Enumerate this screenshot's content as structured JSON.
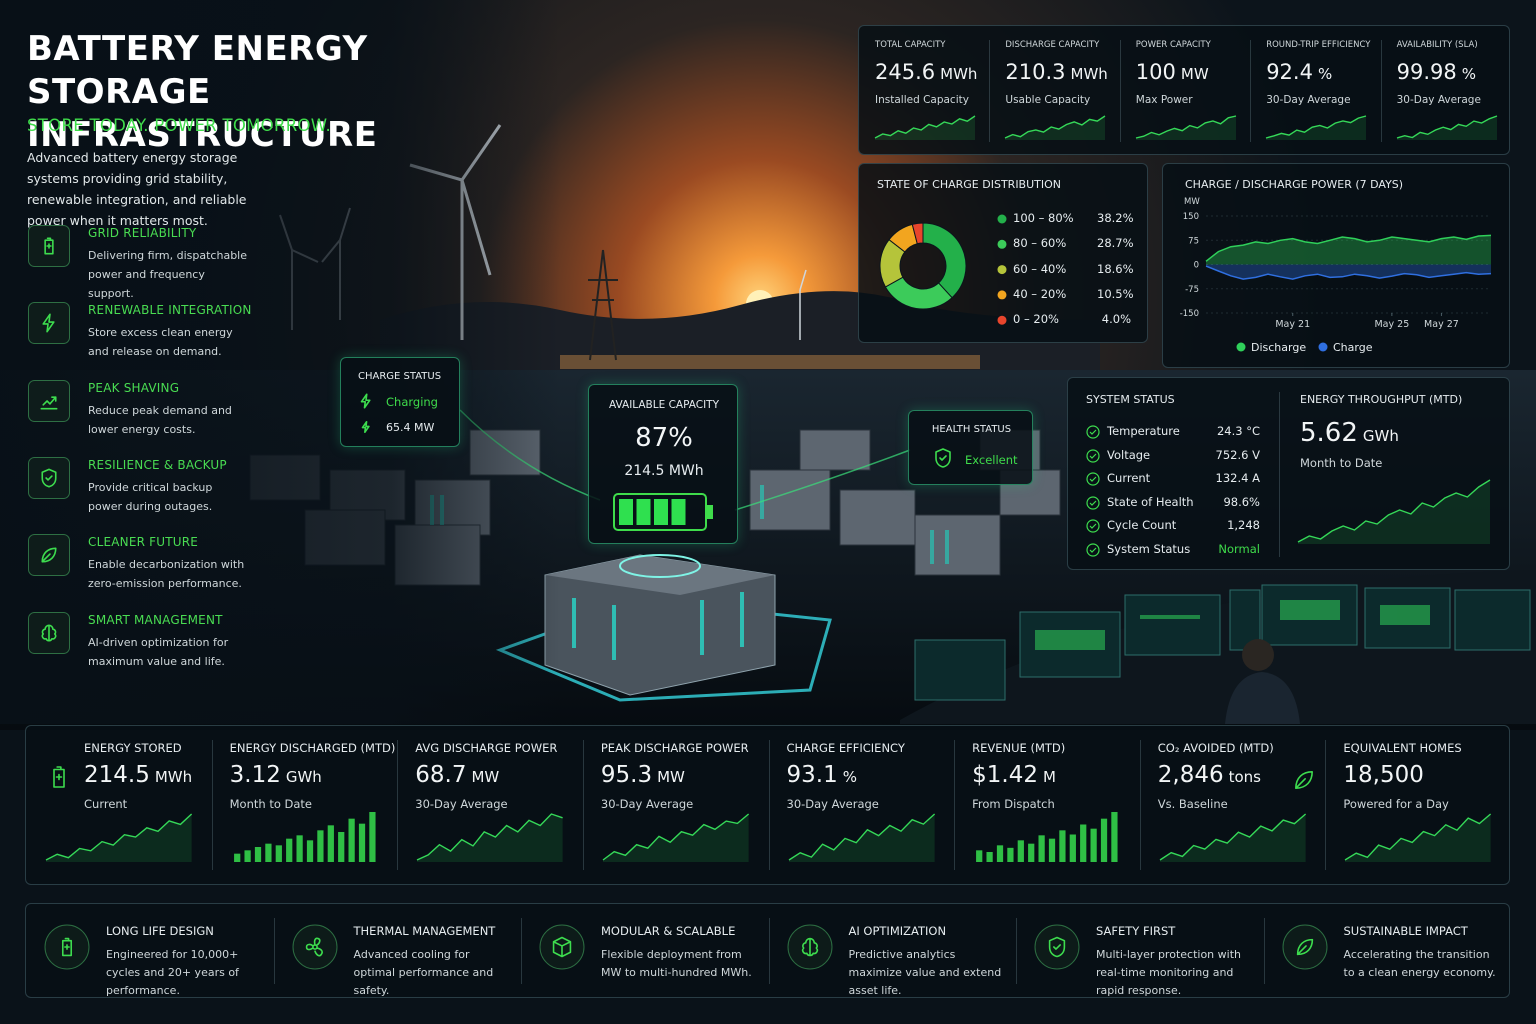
{
  "header": {
    "title": "BATTERY ENERGY STORAGE INFRASTRUCTURE",
    "tagline": "STORE TODAY. POWER TOMORROW.",
    "description": "Advanced battery energy storage systems providing grid stability, renewable integration, and reliable power when it matters most."
  },
  "features": [
    {
      "title": "GRID RELIABILITY",
      "text": "Delivering firm, dispatchable power and frequency support."
    },
    {
      "title": "RENEWABLE INTEGRATION",
      "text": "Store excess clean energy and release on demand."
    },
    {
      "title": "PEAK SHAVING",
      "text": "Reduce peak demand and lower energy costs."
    },
    {
      "title": "RESILIENCE & BACKUP",
      "text": "Provide critical backup power during outages."
    },
    {
      "title": "CLEANER FUTURE",
      "text": "Enable decarbonization with zero-emission performance."
    },
    {
      "title": "SMART MANAGEMENT",
      "text": "AI-driven optimization for maximum value and life."
    }
  ],
  "kpis": [
    {
      "label": "TOTAL CAPACITY",
      "value": 245.6,
      "unit": "MWh",
      "sub": "Installed Capacity",
      "spark": [
        3,
        4,
        3.6,
        4.8,
        4.2,
        5.5,
        5,
        6.4,
        5.8,
        7,
        6.5,
        7.8,
        7.2,
        8.5
      ]
    },
    {
      "label": "DISCHARGE CAPACITY",
      "value": 210.3,
      "unit": "MWh",
      "sub": "Usable Capacity",
      "spark": [
        3,
        3.8,
        3.3,
        4.5,
        4.9,
        4.4,
        5.6,
        5.1,
        6.2,
        6.8,
        6.1,
        7.4,
        7,
        8.2
      ]
    },
    {
      "label": "POWER CAPACITY",
      "value": 100,
      "unit": "MW",
      "sub": "Max Power",
      "spark": [
        3.2,
        3.6,
        4.4,
        3.9,
        4.7,
        5.3,
        4.8,
        5.9,
        5.4,
        6.5,
        6.9,
        6.3,
        7.6,
        8
      ]
    },
    {
      "label": "ROUND-TRIP EFFICIENCY",
      "value": 92.4,
      "unit": "%",
      "sub": "30-Day Average",
      "spark": [
        3,
        3.5,
        4.1,
        3.7,
        4.9,
        4.4,
        5.6,
        6,
        5.4,
        6.6,
        7.1,
        6.7,
        7.8,
        8.3
      ]
    },
    {
      "label": "AVAILABILITY (SLA)",
      "value": 99.98,
      "unit": "%",
      "sub": "30-Day Average",
      "spark": [
        3.4,
        3.9,
        3.5,
        4.6,
        4.2,
        5.1,
        5.7,
        5.2,
        6.3,
        5.9,
        7,
        6.6,
        7.5,
        8.1
      ]
    }
  ],
  "chart_data": [
    {
      "type": "pie",
      "title": "STATE OF CHARGE DISTRIBUTION",
      "categories": [
        "100 – 80%",
        "80 – 60%",
        "60 – 40%",
        "40 – 20%",
        "0 – 20%"
      ],
      "values": [
        38.2,
        28.7,
        18.6,
        10.5,
        4.0
      ],
      "value_labels": [
        "38.2%",
        "28.7%",
        "18.6%",
        "10.5%",
        "4.0%"
      ],
      "colors": [
        "#23b04a",
        "#3ccb5a",
        "#b5c43a",
        "#f2a51f",
        "#e8452c"
      ]
    },
    {
      "type": "line",
      "title": "CHARGE / DISCHARGE POWER (7 DAYS)",
      "y_label": "MW",
      "x": [
        17.5,
        18,
        18.5,
        19,
        19.5,
        20,
        20.5,
        21,
        21.5,
        22,
        22.5,
        23,
        23.5,
        24,
        24.5,
        25,
        25.5,
        26,
        26.5,
        27,
        27.5,
        28,
        28.5,
        29
      ],
      "xlim": [
        17.5,
        29
      ],
      "xticks": [
        {
          "value": 21,
          "label": "May 21"
        },
        {
          "value": 25,
          "label": "May 25"
        },
        {
          "value": 27,
          "label": "May 27"
        }
      ],
      "ylim": [
        -150,
        150
      ],
      "yticks": [
        150,
        75,
        0,
        -75,
        -150
      ],
      "grid": true,
      "series": [
        {
          "name": "Discharge",
          "color": "#2fd05a",
          "values": [
            10,
            40,
            55,
            60,
            70,
            65,
            75,
            80,
            70,
            65,
            75,
            85,
            80,
            70,
            75,
            85,
            80,
            75,
            70,
            80,
            85,
            78,
            88,
            90
          ]
        },
        {
          "name": "Charge",
          "color": "#2f6fe0",
          "values": [
            -5,
            -20,
            -35,
            -45,
            -40,
            -30,
            -38,
            -45,
            -35,
            -30,
            -40,
            -38,
            -30,
            -35,
            -42,
            -36,
            -28,
            -32,
            -40,
            -35,
            -30,
            -25,
            -30,
            -28
          ]
        }
      ]
    }
  ],
  "system_status": {
    "title": "SYSTEM STATUS",
    "rows": [
      {
        "label": "Temperature",
        "value": "24.3 °C"
      },
      {
        "label": "Voltage",
        "value": "752.6 V"
      },
      {
        "label": "Current",
        "value": "132.4 A"
      },
      {
        "label": "State of Health",
        "value": "98.6%"
      },
      {
        "label": "Cycle Count",
        "value": "1,248"
      },
      {
        "label": "System Status",
        "value": "Normal"
      }
    ]
  },
  "throughput": {
    "title": "ENERGY THROUGHPUT (MTD)",
    "value": 5.62,
    "unit": "GWh",
    "sub": "Month to Date",
    "spark": [
      2,
      2.6,
      2.3,
      3.1,
      3.6,
      3.2,
      4.1,
      3.8,
      4.7,
      5.2,
      4.8,
      5.9,
      5.5,
      6.4,
      6.9,
      6.5,
      7.5,
      8.2
    ]
  },
  "overlays": {
    "charge_status": {
      "title": "CHARGE STATUS",
      "state": "Charging",
      "power": "65.4 MW"
    },
    "available_capacity": {
      "title": "AVAILABLE CAPACITY",
      "percent": "87%",
      "energy": "214.5 MWh"
    },
    "health_status": {
      "title": "HEALTH STATUS",
      "state": "Excellent"
    }
  },
  "metrics": [
    {
      "label": "ENERGY STORED",
      "value": 214.5,
      "unit": "MWh",
      "sub": "Current",
      "chart": "line",
      "spark": [
        2,
        2.5,
        2.2,
        3,
        2.8,
        3.6,
        3.3,
        4.2,
        4,
        4.8,
        4.5,
        5.4,
        5.1,
        6
      ]
    },
    {
      "label": "ENERGY DISCHARGED (MTD)",
      "value": 3.12,
      "unit": "GWh",
      "sub": "Month to Date",
      "chart": "bar",
      "spark": [
        1,
        1.4,
        1.8,
        2.2,
        2,
        2.8,
        3.2,
        2.6,
        3.8,
        4.4,
        3.6,
        5.2,
        4.6,
        6
      ]
    },
    {
      "label": "AVG DISCHARGE POWER",
      "value": 68.7,
      "unit": "MW",
      "sub": "30-Day Average",
      "chart": "line",
      "spark": [
        2.2,
        2.6,
        3.4,
        2.9,
        3.8,
        3.3,
        4.4,
        4,
        4.9,
        4.4,
        5.3,
        4.9,
        5.8,
        5.5
      ]
    },
    {
      "label": "PEAK DISCHARGE POWER",
      "value": 95.3,
      "unit": "MW",
      "sub": "30-Day Average",
      "chart": "line",
      "spark": [
        2,
        2.7,
        2.4,
        3.3,
        3,
        4,
        3.5,
        4.4,
        4.1,
        5,
        4.6,
        5.3,
        5.1,
        5.9
      ]
    },
    {
      "label": "CHARGE EFFICIENCY",
      "value": 93.1,
      "unit": "%",
      "sub": "30-Day Average",
      "chart": "line",
      "spark": [
        2.4,
        2.9,
        2.6,
        3.5,
        3.1,
        3.9,
        3.6,
        4.5,
        4.1,
        4.8,
        4.4,
        5.2,
        4.9,
        5.6
      ]
    },
    {
      "label": "REVENUE (MTD)",
      "value": "$1.42",
      "unit": "M",
      "sub": "From Dispatch",
      "chart": "bar",
      "spark": [
        1.4,
        1.2,
        2,
        1.7,
        2.6,
        2.2,
        3.2,
        2.8,
        3.8,
        3.3,
        4.5,
        4,
        5.2,
        6
      ]
    },
    {
      "label": "CO₂ AVOIDED (MTD)",
      "value": "2,846",
      "unit": "tons",
      "sub": "Vs. Baseline",
      "chart": "line",
      "spark": [
        2,
        2.6,
        2.3,
        3.2,
        2.9,
        3.7,
        3.4,
        4.3,
        3.9,
        4.8,
        4.4,
        5.3,
        5,
        5.8
      ]
    },
    {
      "label": "EQUIVALENT HOMES",
      "value": "18,500",
      "unit": "",
      "sub": "Powered for a Day",
      "chart": "line",
      "spark": [
        2.3,
        2.8,
        2.5,
        3.4,
        3.1,
        3.9,
        3.6,
        4.4,
        4.1,
        4.9,
        4.5,
        5.4,
        5,
        5.7
      ]
    }
  ],
  "footer": [
    {
      "title": "LONG LIFE DESIGN",
      "text": "Engineered for 10,000+ cycles and 20+ years of performance."
    },
    {
      "title": "THERMAL MANAGEMENT",
      "text": "Advanced cooling for optimal performance and safety."
    },
    {
      "title": "MODULAR & SCALABLE",
      "text": "Flexible deployment from MW to multi-hundred MWh."
    },
    {
      "title": "AI OPTIMIZATION",
      "text": "Predictive analytics maximize value and extend asset life."
    },
    {
      "title": "SAFETY FIRST",
      "text": "Multi-layer protection with real-time monitoring and rapid response."
    },
    {
      "title": "SUSTAINABLE IMPACT",
      "text": "Accelerating the transition to a clean energy economy."
    }
  ]
}
